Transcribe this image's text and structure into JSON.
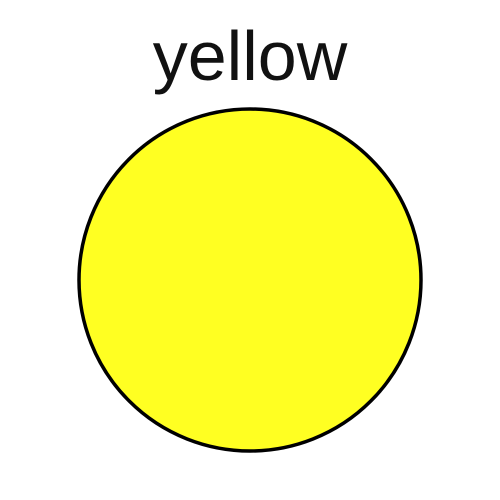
{
  "label": "yellow",
  "colors": {
    "fill": "#ffff22",
    "stroke": "#000000",
    "text": "#111111",
    "background": "#ffffff"
  },
  "shape": "circle"
}
